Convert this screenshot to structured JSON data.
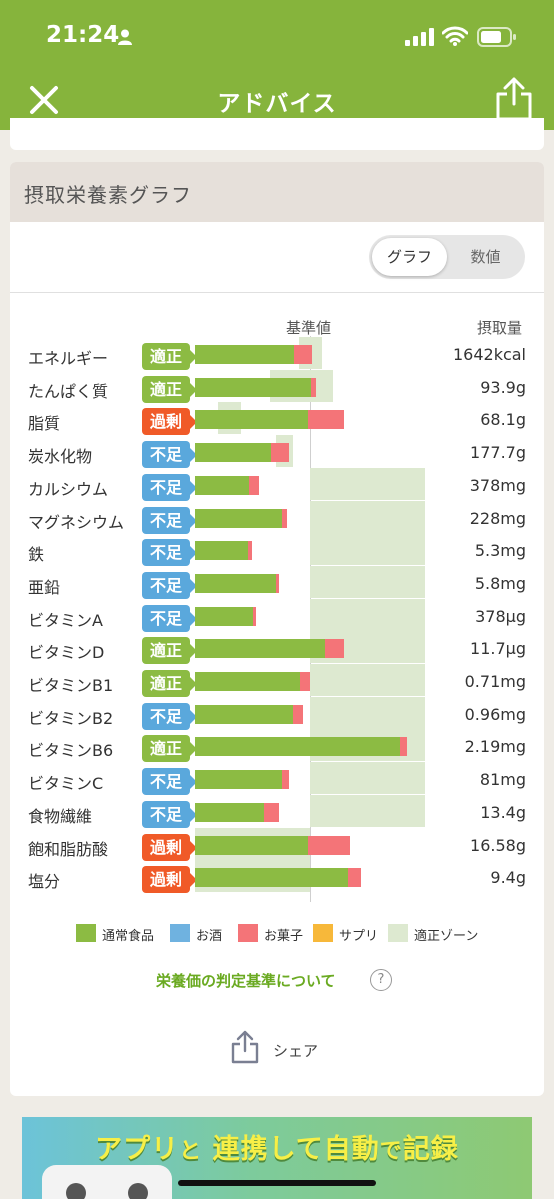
{
  "status_bar": {
    "time": "21:24"
  },
  "nav": {
    "title": "アドバイス"
  },
  "section": {
    "title": "摂取栄養素グラフ"
  },
  "toggle": {
    "graph": "グラフ",
    "values": "数値"
  },
  "columns": {
    "reference": "基準値",
    "intake": "摂取量"
  },
  "nutrients": [
    {
      "name": "エネルギー",
      "status": "適正",
      "amount": "1642kcal"
    },
    {
      "name": "たんぱく質",
      "status": "適正",
      "amount": "93.9g"
    },
    {
      "name": "脂質",
      "status": "過剰",
      "amount": "68.1g"
    },
    {
      "name": "炭水化物",
      "status": "不足",
      "amount": "177.7g"
    },
    {
      "name": "カルシウム",
      "status": "不足",
      "amount": "378mg"
    },
    {
      "name": "マグネシウム",
      "status": "不足",
      "amount": "228mg"
    },
    {
      "name": "鉄",
      "status": "不足",
      "amount": "5.3mg"
    },
    {
      "name": "亜鉛",
      "status": "不足",
      "amount": "5.8mg"
    },
    {
      "name": "ビタミンA",
      "status": "不足",
      "amount": "378μg"
    },
    {
      "name": "ビタミンD",
      "status": "適正",
      "amount": "11.7μg"
    },
    {
      "name": "ビタミンB1",
      "status": "適正",
      "amount": "0.71mg"
    },
    {
      "name": "ビタミンB2",
      "status": "不足",
      "amount": "0.96mg"
    },
    {
      "name": "ビタミンB6",
      "status": "適正",
      "amount": "2.19mg"
    },
    {
      "name": "ビタミンC",
      "status": "不足",
      "amount": "81mg"
    },
    {
      "name": "食物繊維",
      "status": "不足",
      "amount": "13.4g"
    },
    {
      "name": "飽和脂肪酸",
      "status": "過剰",
      "amount": "16.58g"
    },
    {
      "name": "塩分",
      "status": "過剰",
      "amount": "9.4g"
    }
  ],
  "chart_data": {
    "type": "bar",
    "orientation": "horizontal",
    "stacked": true,
    "unit": "% of reference (estimated)",
    "categories": [
      "エネルギー",
      "たんぱく質",
      "脂質",
      "炭水化物",
      "カルシウム",
      "マグネシウム",
      "鉄",
      "亜鉛",
      "ビタミンA",
      "ビタミンD",
      "ビタミンB1",
      "ビタミンB2",
      "ビタミンB6",
      "ビタミンC",
      "食物繊維",
      "飽和脂肪酸",
      "塩分"
    ],
    "series": [
      {
        "name": "通常食品",
        "values": [
          86,
          101,
          98,
          66,
          47,
          76,
          46,
          70,
          50,
          113,
          91,
          85,
          178,
          76,
          60,
          98,
          133
        ]
      },
      {
        "name": "お酒",
        "values": [
          0,
          0,
          0,
          0,
          0,
          0,
          0,
          0,
          0,
          0,
          0,
          0,
          0,
          0,
          0,
          0,
          0
        ]
      },
      {
        "name": "お菓子",
        "values": [
          16,
          4,
          32,
          16,
          9,
          4,
          4,
          3,
          3,
          17,
          9,
          9,
          6,
          6,
          13,
          37,
          11
        ]
      },
      {
        "name": "サプリ",
        "values": [
          0,
          0,
          0,
          0,
          0,
          0,
          0,
          0,
          0,
          0,
          0,
          0,
          0,
          0,
          0,
          0,
          0
        ]
      }
    ],
    "zones": [
      [
        90,
        110
      ],
      [
        65,
        120
      ],
      [
        20,
        40
      ],
      [
        70,
        85
      ],
      [
        100,
        200
      ],
      [
        100,
        200
      ],
      [
        100,
        200
      ],
      [
        100,
        200
      ],
      [
        100,
        200
      ],
      [
        100,
        200
      ],
      [
        100,
        200
      ],
      [
        100,
        200
      ],
      [
        100,
        200
      ],
      [
        100,
        200
      ],
      [
        100,
        200
      ],
      [
        0,
        100
      ],
      [
        0,
        100
      ]
    ],
    "reference_value": 100,
    "legend": [
      "通常食品",
      "お酒",
      "お菓子",
      "サプリ",
      "適正ゾーン"
    ],
    "legend_position": "bottom"
  },
  "legend": {
    "items": [
      {
        "label": "通常食品",
        "color": "#8cbb43"
      },
      {
        "label": "お酒",
        "color": "#6fb2e0"
      },
      {
        "label": "お菓子",
        "color": "#f47478"
      },
      {
        "label": "サプリ",
        "color": "#f7b83a"
      },
      {
        "label": "適正ゾーン",
        "color": "#dde9d0"
      }
    ]
  },
  "status_colors": {
    "適正": "#8cbb43",
    "過剰": "#f05a28",
    "不足": "#5aa8dc"
  },
  "links": {
    "criteria": "栄養価の判定基準について",
    "help": "?"
  },
  "share": {
    "label": "シェア"
  },
  "banner": {
    "text_a": "アプリ",
    "text_b": "と",
    "text_c": "連携して自動",
    "text_d": "で",
    "text_e": "記録"
  }
}
